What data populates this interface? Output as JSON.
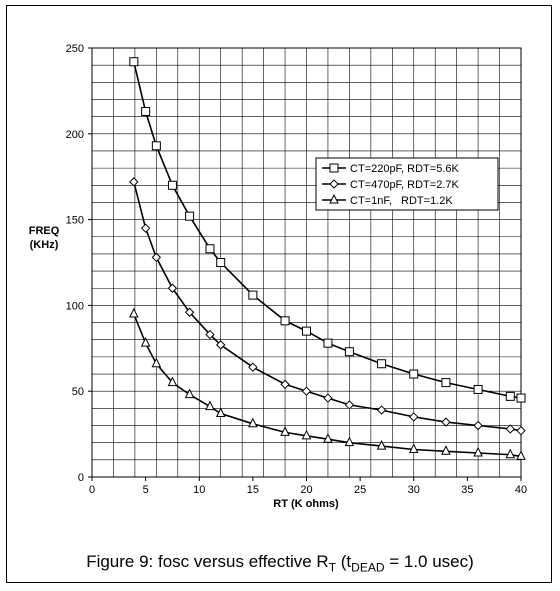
{
  "chart_data": {
    "type": "line",
    "xlabel": "RT (K ohms)",
    "ylabel_line1": "FREQ",
    "ylabel_line2": "(KHz)",
    "xlim": [
      0,
      40
    ],
    "ylim": [
      0,
      250
    ],
    "x_ticks": [
      "0",
      "5",
      "10",
      "15",
      "20",
      "25",
      "30",
      "35",
      "40"
    ],
    "y_ticks": [
      "0",
      "50",
      "100",
      "150",
      "200",
      "250"
    ],
    "grid": true,
    "legend_position": "right-middle",
    "series": [
      {
        "name": "CT=220pF, RDT=5.6K",
        "marker": "square",
        "x": [
          3.9,
          5,
          6,
          7.5,
          9.1,
          11,
          12,
          15,
          18,
          20,
          22,
          24,
          27,
          30,
          33,
          36,
          39,
          40
        ],
        "y": [
          242,
          213,
          193,
          170,
          152,
          133,
          125,
          106,
          91,
          85,
          78,
          73,
          66,
          60,
          55,
          51,
          47,
          46
        ]
      },
      {
        "name": "CT=470pF, RDT=2.7K",
        "marker": "diamond",
        "x": [
          3.9,
          5,
          6,
          7.5,
          9.1,
          11,
          12,
          15,
          18,
          20,
          22,
          24,
          27,
          30,
          33,
          36,
          39,
          40
        ],
        "y": [
          172,
          145,
          128,
          110,
          96,
          83,
          77,
          64,
          54,
          50,
          46,
          42,
          39,
          35,
          32,
          30,
          28,
          27
        ]
      },
      {
        "name": "CT=1nF,   RDT=1.2K",
        "marker": "triangle",
        "x": [
          3.9,
          5,
          6,
          7.5,
          9.1,
          11,
          12,
          15,
          18,
          20,
          22,
          24,
          27,
          30,
          33,
          36,
          39,
          40
        ],
        "y": [
          95,
          78,
          66,
          55,
          48,
          41,
          37,
          31,
          26,
          24,
          22,
          20,
          18,
          16,
          15,
          14,
          13,
          12
        ]
      }
    ]
  },
  "caption": {
    "prefix": "Figure 9: fosc versus effective R",
    "sub1": "T",
    "middle": " (t",
    "sub2": "DEAD",
    "suffix": " = 1.0 usec)"
  }
}
